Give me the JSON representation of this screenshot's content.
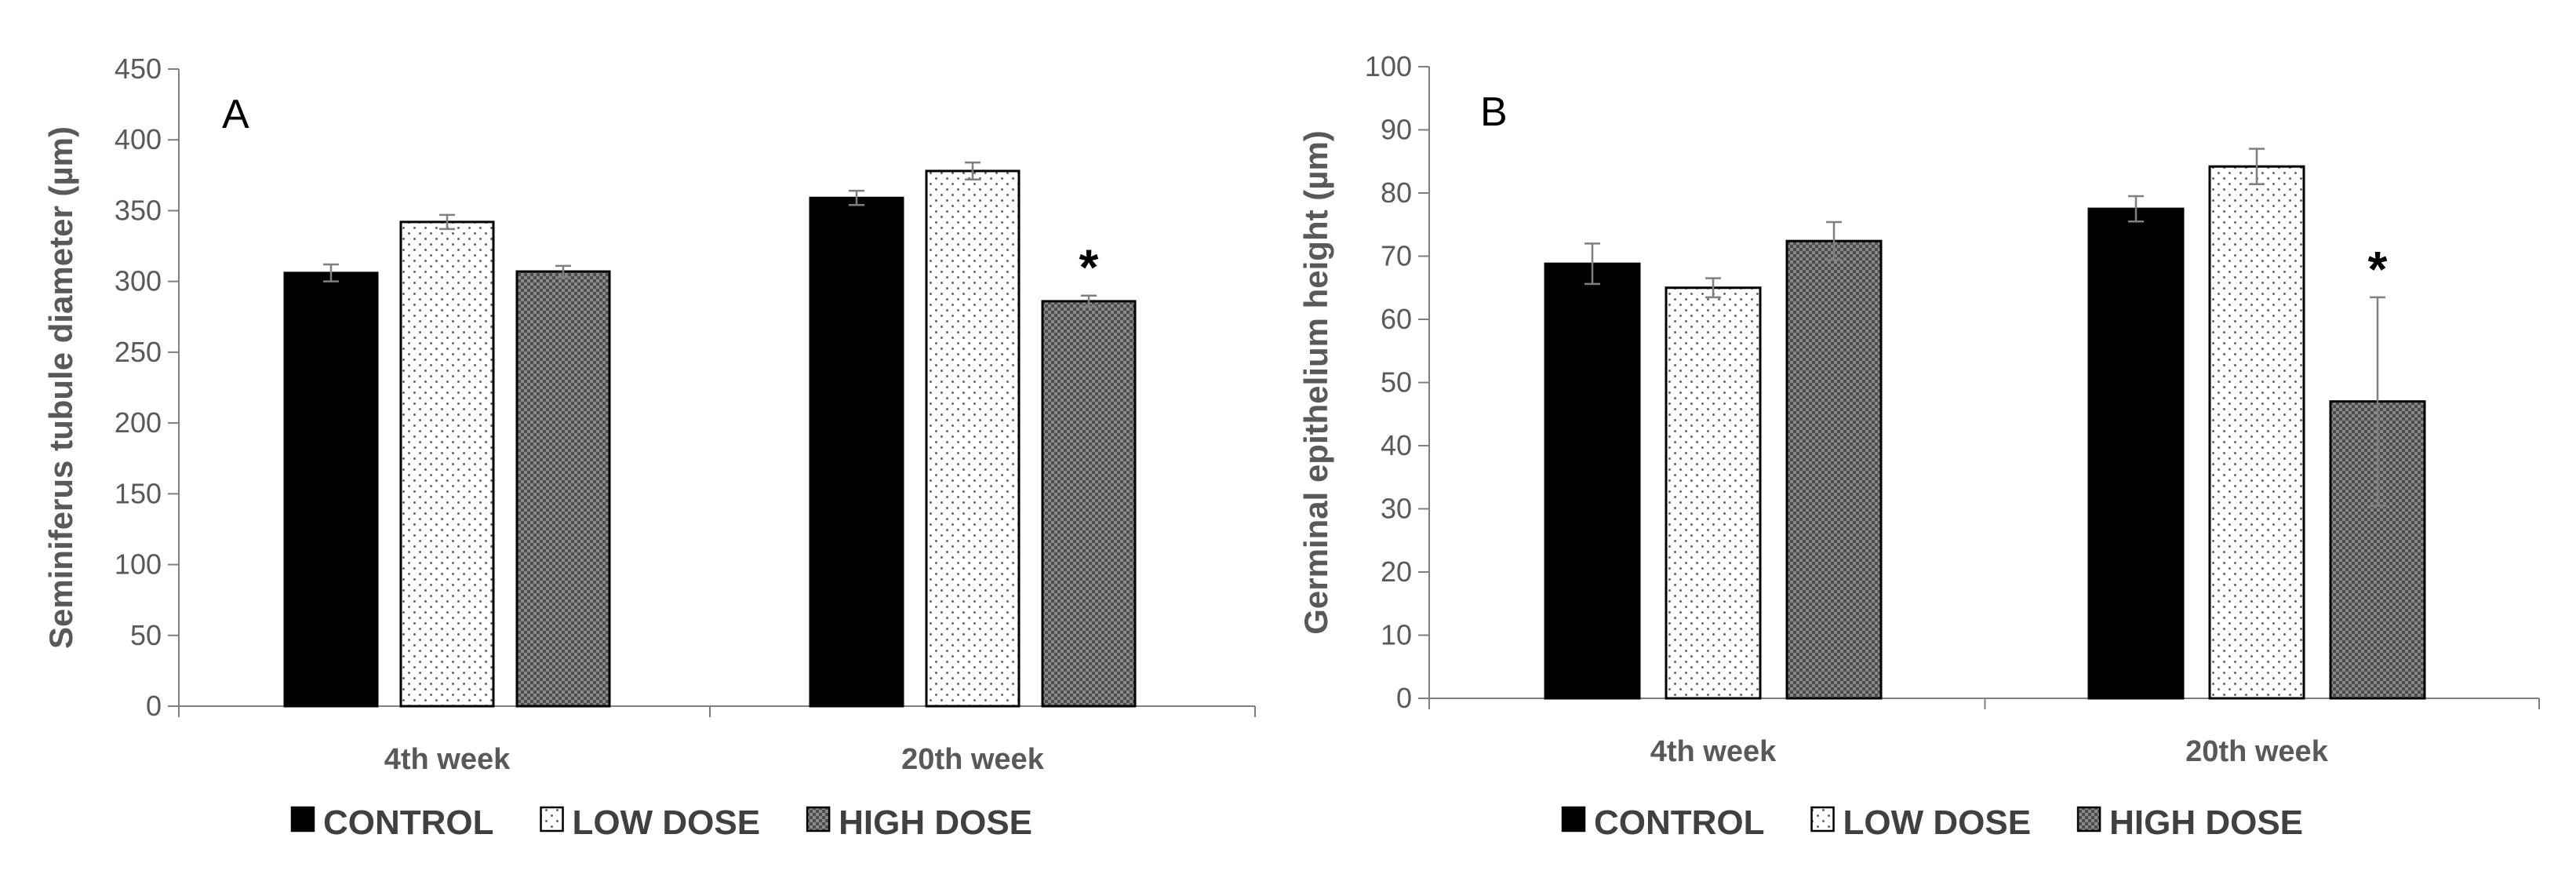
{
  "chart_data": [
    {
      "type": "bar",
      "panel_label": "A",
      "ylabel": "Seminiferus tubule diameter (µm)",
      "xlabel": "",
      "categories": [
        "4th week",
        "20th week"
      ],
      "ylim": [
        0,
        450
      ],
      "yticks": [
        0,
        50,
        100,
        150,
        200,
        250,
        300,
        350,
        400,
        450
      ],
      "series": [
        {
          "name": "CONTROL",
          "values": [
            306,
            359
          ],
          "errors": [
            6,
            5
          ]
        },
        {
          "name": "LOW DOSE",
          "values": [
            342,
            378
          ],
          "errors": [
            5,
            6
          ]
        },
        {
          "name": "HIGH DOSE",
          "values": [
            307,
            286
          ],
          "errors": [
            4,
            4
          ]
        }
      ],
      "annotations": [
        {
          "category": "20th week",
          "series": "HIGH DOSE",
          "text": "*"
        }
      ],
      "legend": [
        "CONTROL",
        "LOW DOSE",
        "HIGH DOSE"
      ],
      "legend_position": "bottom"
    },
    {
      "type": "bar",
      "panel_label": "B",
      "ylabel": "Germinal epithelium height (µm)",
      "xlabel": "",
      "categories": [
        "4th week",
        "20th week"
      ],
      "ylim": [
        0,
        100
      ],
      "yticks": [
        0,
        10,
        20,
        30,
        40,
        50,
        60,
        70,
        80,
        90,
        100
      ],
      "series": [
        {
          "name": "CONTROL",
          "values": [
            68.8,
            77.5
          ],
          "errors": [
            3.2,
            2.0
          ]
        },
        {
          "name": "LOW DOSE",
          "values": [
            65,
            84.2
          ],
          "errors": [
            1.5,
            2.8
          ]
        },
        {
          "name": "HIGH DOSE",
          "values": [
            72.4,
            47
          ],
          "errors": [
            3,
            16.5
          ]
        }
      ],
      "annotations": [
        {
          "category": "20th week",
          "series": "HIGH DOSE",
          "text": "*"
        }
      ],
      "legend": [
        "CONTROL",
        "LOW DOSE",
        "HIGH DOSE"
      ],
      "legend_position": "bottom"
    }
  ]
}
